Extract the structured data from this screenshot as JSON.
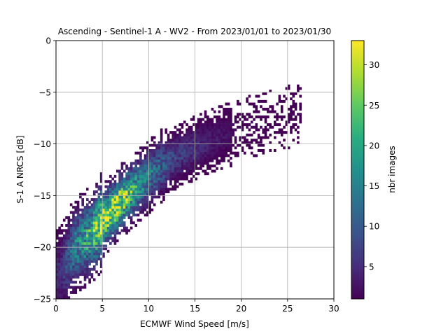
{
  "chart_data": {
    "type": "heatmap",
    "title": "Ascending - Sentinel-1 A - WV2 - From 2023/01/01 to 2023/01/30",
    "xlabel": "ECMWF Wind Speed [m/s]",
    "ylabel": "S-1 A NRCS [dB]",
    "xlim": [
      0,
      30
    ],
    "ylim": [
      -25,
      0
    ],
    "x_ticks": [
      "0",
      "5",
      "10",
      "15",
      "20",
      "25",
      "30"
    ],
    "y_ticks": [
      "−25",
      "−20",
      "−15",
      "−10",
      "−5",
      "0"
    ],
    "grid": true,
    "colormap": "viridis",
    "colorbar": {
      "label": "nbr images",
      "range": [
        1,
        33
      ],
      "ticks": [
        "5",
        "10",
        "15",
        "20",
        "25",
        "30"
      ]
    },
    "bin_size": {
      "x": 0.25,
      "y": 0.25
    },
    "density_ridge": {
      "x": [
        0.5,
        2,
        4,
        5,
        7,
        9,
        11,
        13,
        16,
        19,
        22,
        25,
        26
      ],
      "y": [
        -22.5,
        -20.0,
        -18.6,
        -17.5,
        -15.5,
        -14.0,
        -12.4,
        -11.2,
        -10.0,
        -9.0,
        -8.1,
        -7.4,
        -7.0
      ],
      "peak_count": [
        5,
        14,
        22,
        30,
        28,
        17,
        11,
        7,
        4,
        2,
        1,
        1,
        1
      ]
    }
  }
}
